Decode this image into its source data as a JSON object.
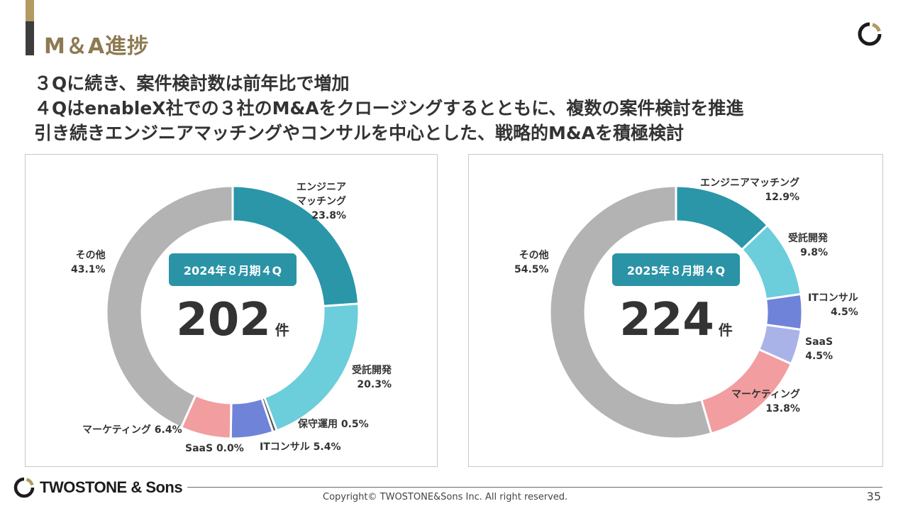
{
  "header": {
    "title": "M＆A進捗"
  },
  "headline": [
    "３Qに続き、案件検討数は前年比で増加",
    "４QはenableX社での３社のM&Aをクロージングするとともに、複数の案件検討を推進",
    "引き続きエンジニアマッチングやコンサルを中心とした、戦略的M&Aを積極検討"
  ],
  "colors": {
    "engineer": "#2a96a8",
    "contract": "#6ccddb",
    "maintenance": "#555555",
    "it": "#6f83d9",
    "saas": "#aab3e8",
    "marketing": "#f29da0",
    "other": "#b3b3b3",
    "badge": "#2a93a6",
    "title": "#8e7a52"
  },
  "chart_data": [
    {
      "type": "pie",
      "title": "2024年８月期４Q",
      "total": "202",
      "unit": "件",
      "slices": [
        {
          "key": "engineer",
          "name": "エンジニア\nマッチング",
          "value": 23.8,
          "label": "23.8%"
        },
        {
          "key": "contract",
          "name": "受託開発",
          "value": 20.3,
          "label": "20.3%"
        },
        {
          "key": "maintenance",
          "name": "保守運用",
          "value": 0.5,
          "label": "0.5%"
        },
        {
          "key": "it",
          "name": "ITコンサル",
          "value": 5.4,
          "label": "5.4%"
        },
        {
          "key": "saas",
          "name": "SaaS",
          "value": 0.0,
          "label": "0.0%"
        },
        {
          "key": "marketing",
          "name": "マーケティング",
          "value": 6.4,
          "label": "6.4%"
        },
        {
          "key": "other",
          "name": "その他",
          "value": 43.1,
          "label": "43.1%"
        }
      ]
    },
    {
      "type": "pie",
      "title": "2025年８月期４Q",
      "total": "224",
      "unit": "件",
      "slices": [
        {
          "key": "engineer",
          "name": "エンジニアマッチング",
          "value": 12.9,
          "label": "12.9%"
        },
        {
          "key": "contract",
          "name": "受託開発",
          "value": 9.8,
          "label": "9.8%"
        },
        {
          "key": "it",
          "name": "ITコンサル",
          "value": 4.5,
          "label": "4.5%"
        },
        {
          "key": "saas",
          "name": "SaaS",
          "value": 4.5,
          "label": "4.5%"
        },
        {
          "key": "marketing",
          "name": "マーケティング",
          "value": 13.8,
          "label": "13.8%"
        },
        {
          "key": "other",
          "name": "その他",
          "value": 54.5,
          "label": "54.5%"
        }
      ]
    }
  ],
  "footer": {
    "brand": "TWOSTONE & Sons",
    "copyright": "Copyright© TWOSTONE&Sons Inc. All right reserved.",
    "page": "35"
  }
}
